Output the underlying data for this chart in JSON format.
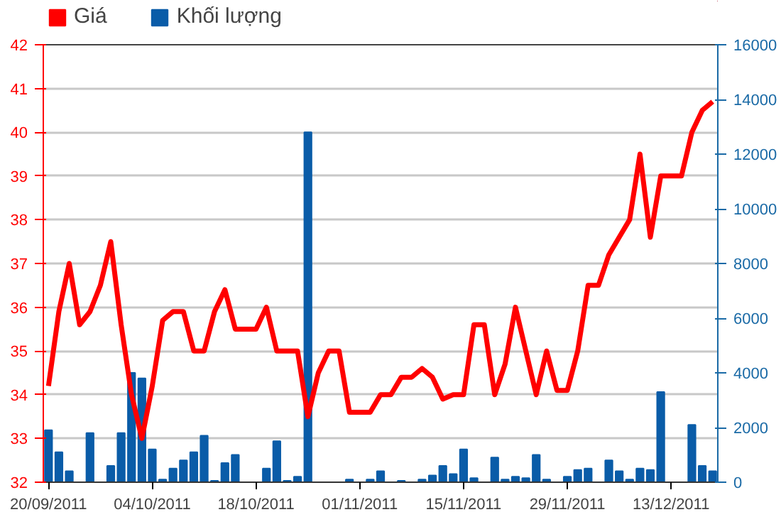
{
  "chart_data": {
    "type": "line",
    "categories": [
      "20/09/2011",
      null,
      null,
      null,
      null,
      null,
      null,
      null,
      null,
      null,
      "04/10/2011",
      null,
      null,
      null,
      null,
      null,
      null,
      null,
      null,
      null,
      "18/10/2011",
      null,
      null,
      null,
      null,
      null,
      null,
      null,
      null,
      null,
      "01/11/2011",
      null,
      null,
      null,
      null,
      null,
      null,
      null,
      null,
      null,
      "15/11/2011",
      null,
      null,
      null,
      null,
      null,
      null,
      null,
      null,
      null,
      "29/11/2011",
      null,
      null,
      null,
      null,
      null,
      null,
      null,
      null,
      null,
      "13/12/2011",
      null,
      null,
      null,
      null
    ],
    "series": [
      {
        "name": "Khối lượng",
        "color": "#0a5ca8",
        "type": "bar",
        "axis": "y2",
        "values": [
          1900,
          1100,
          400,
          null,
          1800,
          null,
          600,
          1800,
          4000,
          3800,
          1200,
          100,
          500,
          800,
          1100,
          1700,
          50,
          700,
          1000,
          null,
          null,
          500,
          1500,
          50,
          200,
          12800,
          null,
          null,
          null,
          100,
          null,
          100,
          400,
          null,
          50,
          null,
          100,
          250,
          600,
          300,
          1200,
          150,
          null,
          900,
          100,
          200,
          150,
          1000,
          100,
          null,
          200,
          450,
          500,
          null,
          800,
          400,
          100,
          500,
          450,
          3300,
          null,
          null,
          2100,
          600,
          400
        ]
      },
      {
        "name": "Giá",
        "color": "#ff0000",
        "type": "line",
        "values": [
          34.2,
          35.9,
          37.0,
          35.6,
          35.9,
          36.5,
          37.5,
          35.6,
          34.0,
          33.0,
          34.2,
          35.7,
          35.9,
          35.9,
          35.0,
          35.0,
          35.9,
          36.4,
          35.5,
          35.5,
          35.5,
          36.0,
          35.0,
          35.0,
          35.0,
          33.5,
          34.5,
          35.0,
          35.0,
          33.6,
          33.6,
          33.6,
          34.0,
          34.0,
          34.4,
          34.4,
          34.6,
          34.4,
          33.9,
          34.0,
          34.0,
          35.6,
          35.6,
          34.0,
          34.7,
          36.0,
          35.0,
          34.0,
          35.0,
          34.1,
          34.1,
          35.0,
          36.5,
          36.5,
          37.2,
          37.6,
          38.0,
          39.5,
          37.6,
          39.0,
          39.0,
          39.0,
          40.0,
          40.5,
          40.7
        ]
      }
    ],
    "ylim": [
      32,
      42
    ],
    "yticks": [
      32,
      33,
      34,
      35,
      36,
      37,
      38,
      39,
      40,
      41,
      42
    ],
    "y2lim": [
      0,
      16000
    ],
    "y2ticks": [
      0,
      2000,
      4000,
      6000,
      8000,
      10000,
      12000,
      14000,
      16000
    ],
    "grid": "y",
    "legend": "top left"
  }
}
